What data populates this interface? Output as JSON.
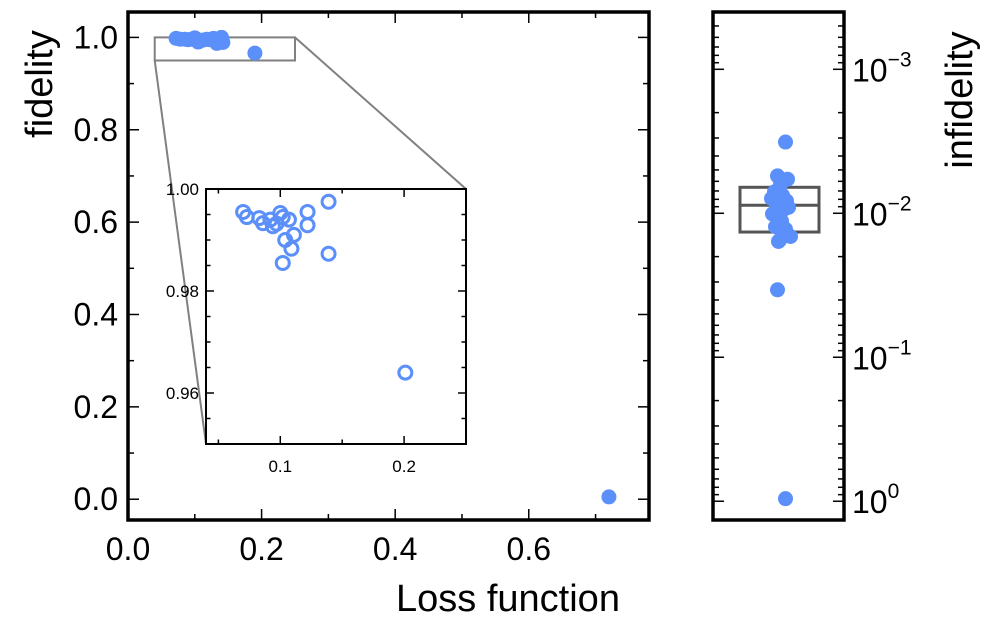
{
  "chart_data": [
    {
      "id": "main",
      "type": "scatter",
      "xlabel": "Loss function",
      "ylabel": "fidelity",
      "xlim": [
        0.0,
        0.78
      ],
      "ylim": [
        -0.045,
        1.055
      ],
      "x_ticks": [
        "0.0",
        "0.2",
        "0.4",
        "0.6"
      ],
      "y_ticks": [
        "0.0",
        "0.2",
        "0.4",
        "0.6",
        "0.8",
        "1.0"
      ],
      "marker": "filled-circle",
      "color": "#5b8ff9",
      "points": [
        {
          "x": 0.072,
          "y": 0.998
        },
        {
          "x": 0.078,
          "y": 0.996
        },
        {
          "x": 0.085,
          "y": 0.996
        },
        {
          "x": 0.09,
          "y": 0.995
        },
        {
          "x": 0.095,
          "y": 0.996
        },
        {
          "x": 0.099,
          "y": 0.997
        },
        {
          "x": 0.1,
          "y": 0.999
        },
        {
          "x": 0.103,
          "y": 0.996
        },
        {
          "x": 0.105,
          "y": 0.99
        },
        {
          "x": 0.108,
          "y": 0.993
        },
        {
          "x": 0.112,
          "y": 0.994
        },
        {
          "x": 0.118,
          "y": 0.996
        },
        {
          "x": 0.122,
          "y": 0.995
        },
        {
          "x": 0.128,
          "y": 0.998
        },
        {
          "x": 0.133,
          "y": 0.987
        },
        {
          "x": 0.136,
          "y": 0.997
        },
        {
          "x": 0.14,
          "y": 1.0
        },
        {
          "x": 0.142,
          "y": 0.989
        },
        {
          "x": 0.19,
          "y": 0.966
        },
        {
          "x": 0.72,
          "y": 0.005
        }
      ],
      "zoom_box": {
        "xlim": [
          0.04,
          0.25
        ],
        "ylim": [
          0.95,
          1.0
        ]
      }
    },
    {
      "id": "inset",
      "type": "scatter",
      "xlim": [
        0.04,
        0.25
      ],
      "ylim": [
        0.95,
        1.0
      ],
      "x_ticks": [
        "0.1",
        "0.2"
      ],
      "y_ticks": [
        "0.96",
        "0.98",
        "1.00"
      ],
      "marker": "open-circle",
      "color": "#5b8ff9",
      "points": [
        {
          "x": 0.07,
          "y": 0.9955
        },
        {
          "x": 0.073,
          "y": 0.9945
        },
        {
          "x": 0.083,
          "y": 0.9943
        },
        {
          "x": 0.086,
          "y": 0.9933
        },
        {
          "x": 0.092,
          "y": 0.994
        },
        {
          "x": 0.094,
          "y": 0.9927
        },
        {
          "x": 0.097,
          "y": 0.9932
        },
        {
          "x": 0.1,
          "y": 0.9953
        },
        {
          "x": 0.102,
          "y": 0.9945
        },
        {
          "x": 0.107,
          "y": 0.994
        },
        {
          "x": 0.104,
          "y": 0.99
        },
        {
          "x": 0.109,
          "y": 0.9883
        },
        {
          "x": 0.111,
          "y": 0.991
        },
        {
          "x": 0.102,
          "y": 0.9855
        },
        {
          "x": 0.122,
          "y": 0.9955
        },
        {
          "x": 0.122,
          "y": 0.9929
        },
        {
          "x": 0.139,
          "y": 0.9975
        },
        {
          "x": 0.139,
          "y": 0.9873
        },
        {
          "x": 0.201,
          "y": 0.964
        }
      ]
    },
    {
      "id": "side",
      "type": "box",
      "ylabel": "infidelity",
      "yscale": "log",
      "y_inverted": true,
      "ylim": [
        0.0004,
        1.35
      ],
      "y_ticks": [
        {
          "base": "10",
          "exp": "−3",
          "value": 0.001
        },
        {
          "base": "10",
          "exp": "−2",
          "value": 0.01
        },
        {
          "base": "10",
          "exp": "−1",
          "value": 0.1
        },
        {
          "base": "10",
          "exp": "0",
          "value": 1
        }
      ],
      "box": {
        "q1": 0.0066,
        "median": 0.0088,
        "q3": 0.0135,
        "whisker_low": 0.0066,
        "whisker_high": 0.0135
      },
      "box_color": "#555555",
      "values": [
        0.0032,
        0.0055,
        0.0058,
        0.0063,
        0.0071,
        0.0075,
        0.0079,
        0.0082,
        0.0086,
        0.0089,
        0.0091,
        0.0094,
        0.0101,
        0.0113,
        0.0124,
        0.0129,
        0.0145,
        0.0154,
        0.0157,
        0.034,
        0.96
      ],
      "marker": "filled-circle",
      "color": "#5b8ff9"
    }
  ]
}
